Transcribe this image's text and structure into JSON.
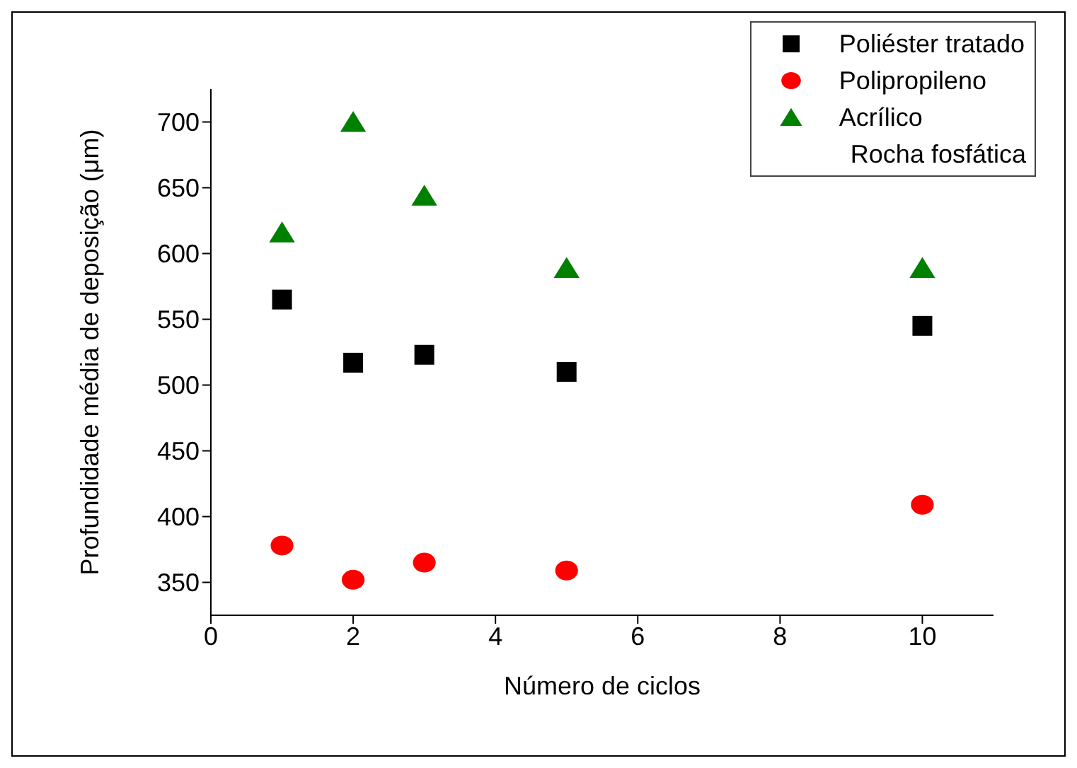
{
  "chart_data": {
    "type": "scatter",
    "xlabel": "Número de ciclos",
    "ylabel": "Profundidade média de deposição (μm)",
    "legend_title": "Rocha fosfática",
    "legend": "top right",
    "grid": false,
    "xlim": [
      0,
      11
    ],
    "xticks": [
      0,
      2,
      4,
      6,
      8,
      10
    ],
    "ylim": [
      325,
      725
    ],
    "yticks": [
      350,
      400,
      450,
      500,
      550,
      600,
      650,
      700
    ],
    "series": [
      {
        "name": "Poliéster tratado",
        "color": "#000000",
        "marker": "square",
        "x": [
          1,
          2,
          3,
          5,
          10
        ],
        "values": [
          565,
          517,
          523,
          510,
          545
        ]
      },
      {
        "name": "Polipropileno",
        "color": "#ff0000",
        "marker": "circle",
        "x": [
          1,
          2,
          3,
          5,
          10
        ],
        "values": [
          378,
          352,
          365,
          359,
          409
        ]
      },
      {
        "name": "Acrílico",
        "color": "#008000",
        "marker": "triangle",
        "x": [
          1,
          2,
          3,
          5,
          10
        ],
        "values": [
          616,
          700,
          644,
          589,
          589
        ]
      }
    ]
  }
}
